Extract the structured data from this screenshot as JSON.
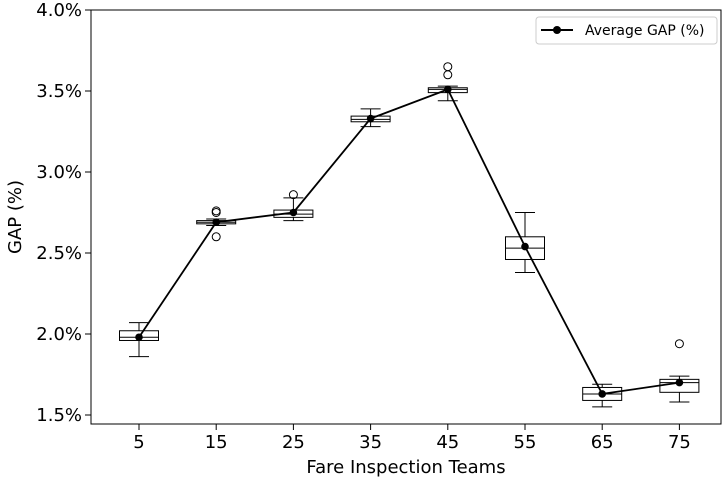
{
  "chart_data": {
    "type": "box+line",
    "xlabel": "Fare Inspection Teams",
    "ylabel": "GAP (%)",
    "ylim": [
      1.45,
      4.0
    ],
    "yticks": [
      1.5,
      2.0,
      2.5,
      3.0,
      3.5,
      4.0
    ],
    "ytick_labels": [
      "1.5%",
      "2.0%",
      "2.5%",
      "3.0%",
      "3.5%",
      "4.0%"
    ],
    "categories": [
      "5",
      "15",
      "25",
      "35",
      "45",
      "55",
      "65",
      "75"
    ],
    "grid": false,
    "legend": {
      "position": "top-right",
      "entries": [
        "Average GAP (%)"
      ]
    },
    "boxes": [
      {
        "category": "5",
        "whisker_low": 1.86,
        "q1": 1.96,
        "median": 1.98,
        "q3": 2.02,
        "whisker_high": 2.07,
        "outliers": []
      },
      {
        "category": "15",
        "whisker_low": 2.67,
        "q1": 2.68,
        "median": 2.69,
        "q3": 2.7,
        "whisker_high": 2.71,
        "outliers": [
          2.75,
          2.76,
          2.6
        ]
      },
      {
        "category": "25",
        "whisker_low": 2.7,
        "q1": 2.72,
        "median": 2.74,
        "q3": 2.765,
        "whisker_high": 2.84,
        "outliers": [
          2.86
        ]
      },
      {
        "category": "35",
        "whisker_low": 3.28,
        "q1": 3.31,
        "median": 3.325,
        "q3": 3.345,
        "whisker_high": 3.39,
        "outliers": []
      },
      {
        "category": "45",
        "whisker_low": 3.44,
        "q1": 3.49,
        "median": 3.51,
        "q3": 3.52,
        "whisker_high": 3.53,
        "outliers": [
          3.65,
          3.6
        ]
      },
      {
        "category": "55",
        "whisker_low": 2.38,
        "q1": 2.46,
        "median": 2.53,
        "q3": 2.6,
        "whisker_high": 2.75,
        "outliers": []
      },
      {
        "category": "65",
        "whisker_low": 1.55,
        "q1": 1.59,
        "median": 1.63,
        "q3": 1.67,
        "whisker_high": 1.69,
        "outliers": []
      },
      {
        "category": "75",
        "whisker_low": 1.58,
        "q1": 1.64,
        "median": 1.7,
        "q3": 1.72,
        "whisker_high": 1.74,
        "outliers": [
          1.94
        ]
      }
    ],
    "series": [
      {
        "name": "Average GAP (%)",
        "values": [
          1.98,
          2.69,
          2.75,
          3.33,
          3.51,
          2.54,
          1.63,
          1.7
        ]
      }
    ]
  }
}
